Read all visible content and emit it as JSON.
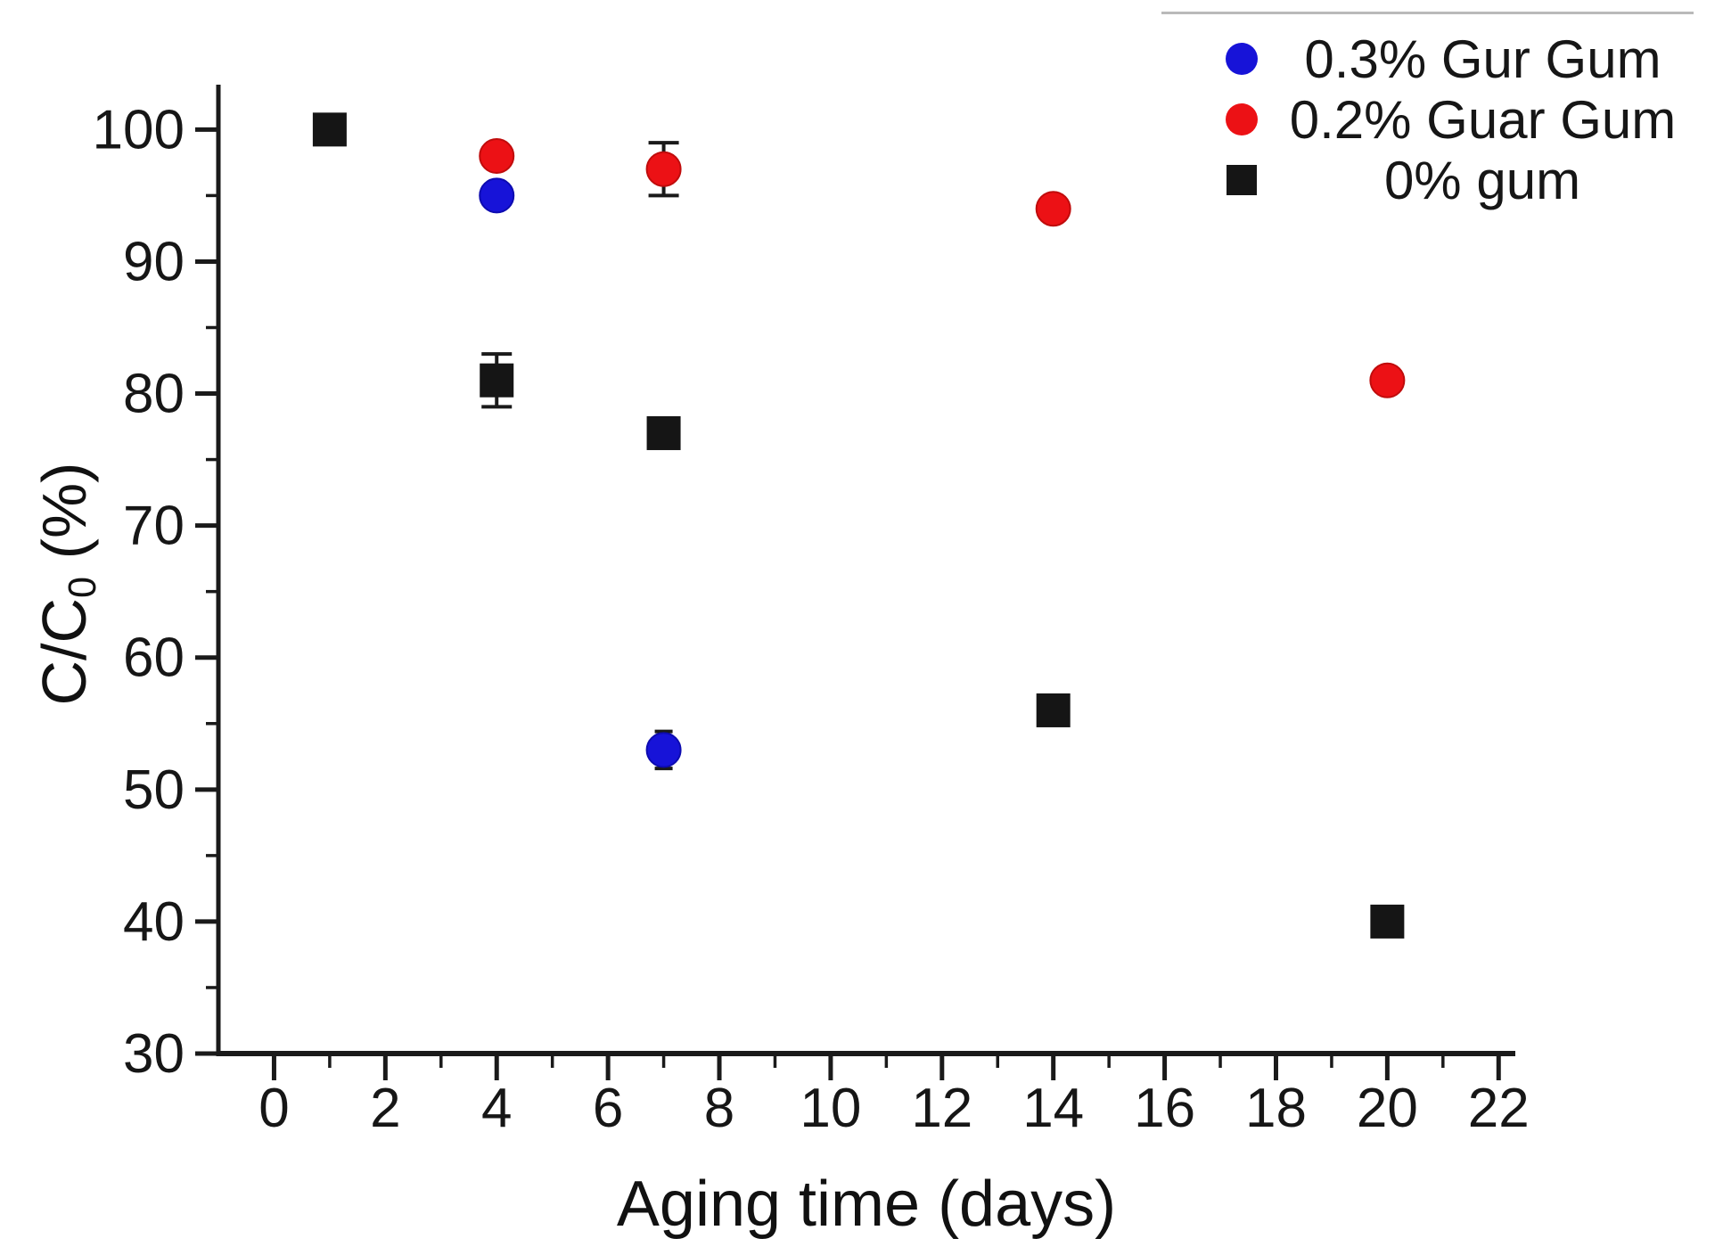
{
  "figure": {
    "background": "#ffffff",
    "text_color": "#161616",
    "axis_color": "#1a1a1a"
  },
  "chart_data": {
    "type": "scatter",
    "title": "",
    "xlabel": "Aging time (days)",
    "ylabel": {
      "pre": "C/C",
      "sub": "0",
      "post": " (%)"
    },
    "xlim": [
      -1,
      22.3
    ],
    "ylim": [
      30,
      103.4
    ],
    "grid": false,
    "x_major_ticks": [
      0,
      2,
      4,
      6,
      8,
      10,
      12,
      14,
      16,
      18,
      20,
      22
    ],
    "x_minor_ticks": [
      1,
      3,
      5,
      7,
      9,
      11,
      13,
      15,
      17,
      19,
      21
    ],
    "y_major_ticks": [
      30,
      40,
      50,
      60,
      70,
      80,
      90,
      100
    ],
    "y_minor_ticks": [
      35,
      45,
      55,
      65,
      75,
      85,
      95
    ],
    "legend_position": "top-right",
    "legend_border_color": "#bababa",
    "series": [
      {
        "name": "0.3% Gur Gum",
        "color": "#1713d8",
        "edge_color": "#0d0bb0",
        "marker": "circle",
        "points": [
          {
            "x": 4,
            "y": 95
          },
          {
            "x": 7,
            "y": 53,
            "err": 1.4
          }
        ]
      },
      {
        "name": "0.2% Guar Gum",
        "color": "#ec1115",
        "edge_color": "#c00c0c",
        "marker": "circle",
        "points": [
          {
            "x": 4,
            "y": 98
          },
          {
            "x": 7,
            "y": 97,
            "err": 2
          },
          {
            "x": 14,
            "y": 94
          },
          {
            "x": 20,
            "y": 81
          }
        ]
      },
      {
        "name": "0% gum",
        "color": "#151515",
        "edge_color": "#151515",
        "marker": "square",
        "points": [
          {
            "x": 1,
            "y": 100
          },
          {
            "x": 4,
            "y": 81,
            "err": 2
          },
          {
            "x": 7,
            "y": 77
          },
          {
            "x": 14,
            "y": 56
          },
          {
            "x": 20,
            "y": 40
          }
        ]
      }
    ]
  }
}
